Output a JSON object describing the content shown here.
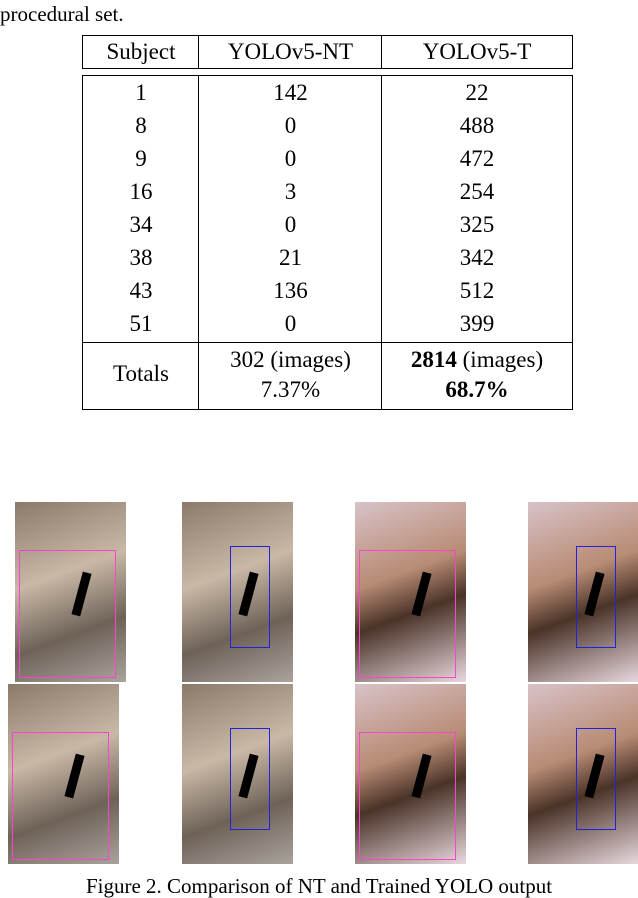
{
  "intro_text": "procedural set.",
  "table": {
    "headers": [
      "Subject",
      "YOLOv5-NT",
      "YOLOv5-T"
    ],
    "rows": [
      [
        "1",
        "142",
        "22"
      ],
      [
        "8",
        "0",
        "488"
      ],
      [
        "9",
        "0",
        "472"
      ],
      [
        "16",
        "3",
        "254"
      ],
      [
        "34",
        "0",
        "325"
      ],
      [
        "38",
        "21",
        "342"
      ],
      [
        "43",
        "136",
        "512"
      ],
      [
        "51",
        "0",
        "399"
      ]
    ],
    "totals": {
      "label": "Totals",
      "nt_count": "302 (images)",
      "nt_pct": "7.37%",
      "t_count_bold": "2814",
      "t_count_rest": " (images)",
      "t_pct": "68.7%"
    }
  },
  "figure": {
    "caption": "Figure 2. Comparison of NT and Trained YOLO output",
    "box_colors": {
      "nt": "#ff44cc",
      "trained": "#2222dd"
    }
  }
}
